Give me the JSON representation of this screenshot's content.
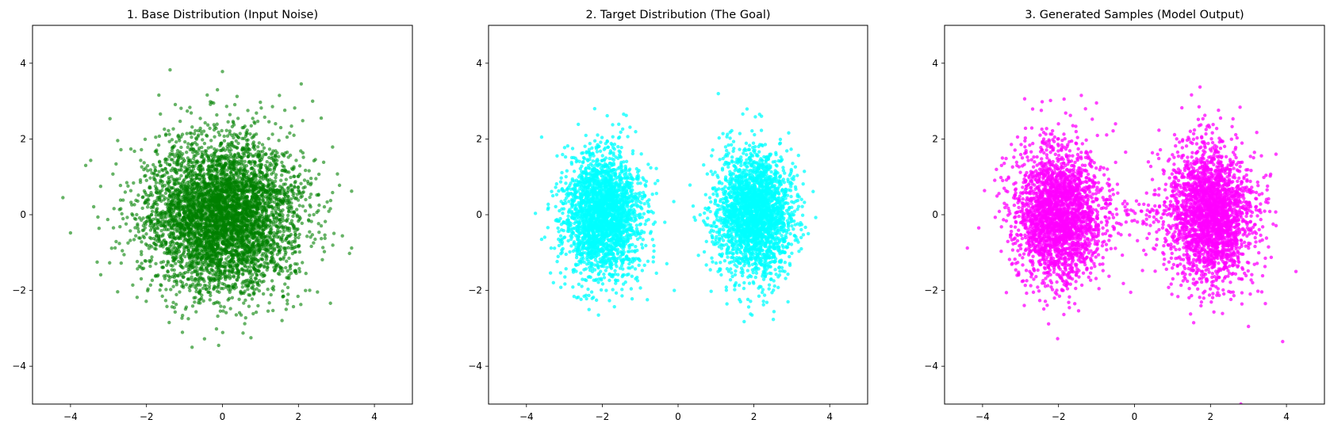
{
  "chart_data": [
    {
      "type": "scatter",
      "title": "1. Base Distribution (Input Noise)",
      "xlabel": "",
      "ylabel": "",
      "xlim": [
        -5,
        5
      ],
      "ylim": [
        -5,
        5
      ],
      "xticks": [
        -4,
        -2,
        0,
        2,
        4
      ],
      "yticks": [
        -4,
        -2,
        0,
        2,
        4
      ],
      "xtick_labels": [
        "−4",
        "−2",
        "0",
        "2",
        "4"
      ],
      "ytick_labels": [
        "−4",
        "−2",
        "0",
        "2",
        "4"
      ],
      "grid": false,
      "color": "#008000",
      "opacity": 0.6,
      "distribution": {
        "kind": "gaussian",
        "clusters": [
          {
            "mean": [
              0,
              0
            ],
            "std": [
              1.0,
              1.0
            ],
            "n": 5000
          }
        ],
        "seed": 11
      },
      "outliers": [
        [
          0,
          3.78
        ],
        [
          -4.2,
          0.45
        ],
        [
          -4.0,
          -0.48
        ],
        [
          3.4,
          -0.88
        ],
        [
          3.4,
          0.62
        ],
        [
          -0.8,
          -3.5
        ],
        [
          -0.1,
          -3.45
        ],
        [
          0.75,
          -3.25
        ],
        [
          1.5,
          3.15
        ],
        [
          -3.6,
          1.3
        ],
        [
          2.6,
          2.55
        ]
      ]
    },
    {
      "type": "scatter",
      "title": "2. Target Distribution (The Goal)",
      "xlabel": "",
      "ylabel": "",
      "xlim": [
        -5,
        5
      ],
      "ylim": [
        -5,
        5
      ],
      "xticks": [
        -4,
        -2,
        0,
        2,
        4
      ],
      "yticks": [
        -4,
        -2,
        0,
        2,
        4
      ],
      "xtick_labels": [
        "−4",
        "−2",
        "0",
        "2",
        "4"
      ],
      "ytick_labels": [
        "−4",
        "−2",
        "0",
        "2",
        "4"
      ],
      "grid": false,
      "color": "#00FFFF",
      "opacity": 0.75,
      "distribution": {
        "kind": "gaussian_mixture",
        "clusters": [
          {
            "mean": [
              -2,
              0
            ],
            "std": [
              0.5,
              0.8
            ],
            "n": 2500
          },
          {
            "mean": [
              2,
              0
            ],
            "std": [
              0.5,
              0.8
            ],
            "n": 2500
          }
        ],
        "seed": 23
      },
      "outliers": [
        [
          -3.6,
          2.05
        ],
        [
          -2.2,
          2.8
        ],
        [
          2.15,
          2.65
        ],
        [
          2.2,
          2.6
        ],
        [
          -0.1,
          -2.0
        ],
        [
          -0.65,
          -0.25
        ],
        [
          -0.35,
          -0.2
        ],
        [
          1.95,
          -2.65
        ],
        [
          -2.1,
          -2.65
        ],
        [
          -3.6,
          -0.65
        ],
        [
          2.9,
          -2.3
        ]
      ]
    },
    {
      "type": "scatter",
      "title": "3. Generated Samples (Model Output)",
      "xlabel": "",
      "ylabel": "",
      "xlim": [
        -5,
        5
      ],
      "ylim": [
        -5,
        5
      ],
      "xticks": [
        -4,
        -2,
        0,
        2,
        4
      ],
      "yticks": [
        -4,
        -2,
        0,
        2,
        4
      ],
      "xtick_labels": [
        "−4",
        "−2",
        "0",
        "2",
        "4"
      ],
      "ytick_labels": [
        "−4",
        "−2",
        "0",
        "2",
        "4"
      ],
      "grid": false,
      "color": "#FF00FF",
      "opacity": 0.75,
      "distribution": {
        "kind": "gaussian_mixture",
        "clusters": [
          {
            "mean": [
              -2,
              0
            ],
            "std": [
              0.58,
              0.9
            ],
            "n": 2450
          },
          {
            "mean": [
              2,
              0
            ],
            "std": [
              0.58,
              0.9
            ],
            "n": 2450
          },
          {
            "mean": [
              0,
              0
            ],
            "std": [
              0.5,
              0.25
            ],
            "n": 60
          }
        ],
        "seed": 37
      },
      "outliers": [
        [
          -4.4,
          -0.88
        ],
        [
          -4.1,
          -0.35
        ],
        [
          3.9,
          -3.35
        ],
        [
          2.8,
          -5.0
        ],
        [
          4.25,
          -1.5
        ],
        [
          -1.4,
          3.15
        ],
        [
          -1.0,
          2.95
        ],
        [
          1.7,
          2.85
        ],
        [
          -0.1,
          -2.05
        ],
        [
          3.0,
          -2.95
        ],
        [
          -0.5,
          2.4
        ],
        [
          -3.5,
          1.3
        ]
      ]
    }
  ]
}
